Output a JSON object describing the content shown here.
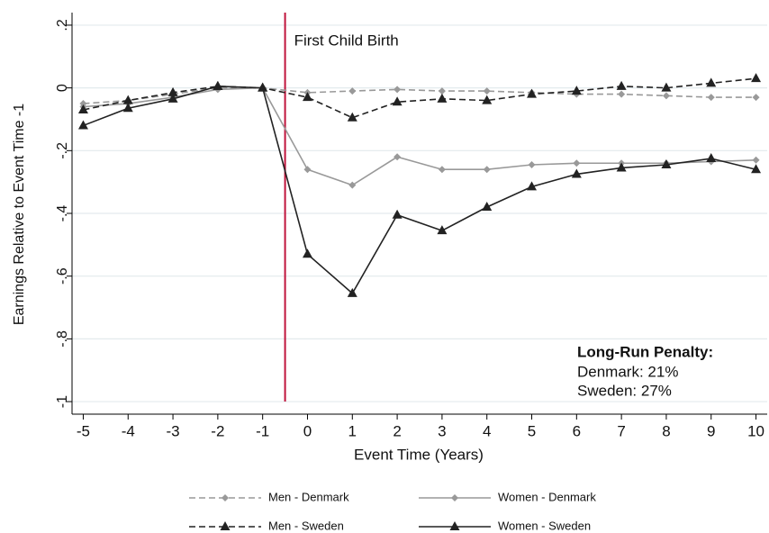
{
  "chart_data": {
    "type": "line",
    "x_label": "Event Time (Years)",
    "y_label": "Earnings Relative to Event Time -1",
    "x": [
      -5,
      -4,
      -3,
      -2,
      -1,
      0,
      1,
      2,
      3,
      4,
      5,
      6,
      7,
      8,
      9,
      10
    ],
    "xlim": [
      -5.25,
      10.25
    ],
    "xticks": [
      -5,
      -4,
      -3,
      -2,
      -1,
      0,
      1,
      2,
      3,
      4,
      5,
      6,
      7,
      8,
      9,
      10
    ],
    "ylim": [
      -1.04,
      0.24
    ],
    "yticks": [
      {
        "value": 0.2,
        "label": ".2"
      },
      0,
      {
        "value": -0.2,
        "label": "-.2"
      },
      {
        "value": -0.4,
        "label": "-.4"
      },
      {
        "value": -0.6,
        "label": "-.6"
      },
      {
        "value": -0.8,
        "label": "-.8"
      },
      -1
    ],
    "grid": true,
    "event_line": {
      "x": -0.5,
      "label": "First Child Birth",
      "color": "#c0143c"
    },
    "penalty": {
      "title": "Long-Run Penalty:",
      "lines": [
        "Denmark:  21%",
        "Sweden:  27%"
      ]
    },
    "series": [
      {
        "name": "Men - Denmark",
        "color": "#999999",
        "dash": true,
        "marker": "diamond",
        "values": [
          -0.05,
          -0.04,
          -0.02,
          0.0,
          0,
          -0.015,
          -0.01,
          -0.005,
          -0.01,
          -0.01,
          -0.015,
          -0.02,
          -0.02,
          -0.025,
          -0.03,
          -0.03
        ]
      },
      {
        "name": "Women - Denmark",
        "color": "#999999",
        "dash": false,
        "marker": "diamond",
        "values": [
          -0.06,
          -0.05,
          -0.03,
          -0.005,
          0,
          -0.26,
          -0.31,
          -0.22,
          -0.26,
          -0.26,
          -0.245,
          -0.24,
          -0.24,
          -0.24,
          -0.235,
          -0.23
        ]
      },
      {
        "name": "Men - Sweden",
        "color": "#222222",
        "dash": true,
        "marker": "triangle",
        "values": [
          -0.07,
          -0.04,
          -0.015,
          0.005,
          0,
          -0.03,
          -0.095,
          -0.045,
          -0.035,
          -0.04,
          -0.02,
          -0.01,
          0.005,
          0.0,
          0.015,
          0.03
        ]
      },
      {
        "name": "Women - Sweden",
        "color": "#222222",
        "dash": false,
        "marker": "triangle",
        "values": [
          -0.12,
          -0.065,
          -0.035,
          0.005,
          0,
          -0.53,
          -0.655,
          -0.405,
          -0.455,
          -0.38,
          -0.315,
          -0.275,
          -0.255,
          -0.245,
          -0.225,
          -0.26
        ]
      }
    ]
  }
}
